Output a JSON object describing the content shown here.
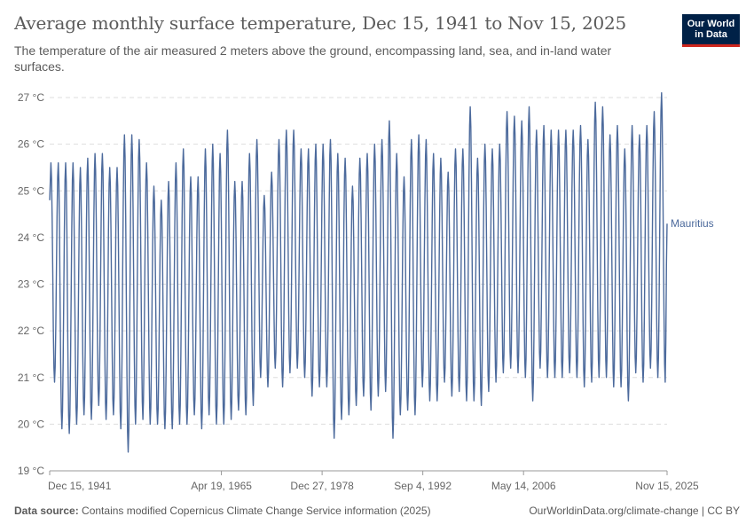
{
  "header": {
    "title": "Average monthly surface temperature, Dec 15, 1941 to Nov 15, 2025",
    "subtitle": "The temperature of the air measured 2 meters above the ground, encompassing land, sea, and in-land water surfaces."
  },
  "logo": {
    "line1": "Our World",
    "line2": "in Data"
  },
  "footer": {
    "source_label": "Data source:",
    "source_text": "Contains modified Copernicus Climate Change Service information (2025)",
    "link_text": "OurWorldinData.org/climate-change | CC BY"
  },
  "chart_data": {
    "type": "line",
    "title": "Average monthly surface temperature, Dec 15, 1941 to Nov 15, 2025",
    "xlabel": "",
    "ylabel": "°C",
    "ylim": [
      19,
      27
    ],
    "y_ticks": [
      "19 °C",
      "20 °C",
      "21 °C",
      "22 °C",
      "23 °C",
      "24 °C",
      "25 °C",
      "26 °C",
      "27 °C"
    ],
    "x_ticks": [
      "Dec 15, 1941",
      "Apr 19, 1965",
      "Dec 27, 1978",
      "Sep 4, 1992",
      "May 14, 2006",
      "Nov 15, 2025"
    ],
    "x_tick_years": [
      1941.96,
      1965.3,
      1978.99,
      1992.68,
      2006.37,
      2025.88
    ],
    "start_year": 1941.96,
    "end_year": 2025.88,
    "series": [
      {
        "name": "Mauritius",
        "color": "#4c6a9c",
        "note": "monthly values; seasonal peak around Feb, trough around Aug",
        "start_value": 24.8,
        "annual_peaks": [
          25.6,
          25.6,
          25.6,
          25.6,
          25.5,
          25.7,
          25.8,
          25.8,
          25.5,
          25.5,
          26.2,
          26.2,
          26.1,
          25.6,
          25.1,
          24.8,
          25.2,
          25.6,
          25.9,
          25.3,
          25.3,
          25.9,
          26.0,
          25.8,
          26.3,
          25.2,
          25.2,
          25.8,
          26.1,
          24.9,
          25.4,
          26.1,
          26.3,
          26.3,
          25.9,
          25.9,
          26.0,
          26.0,
          26.1,
          25.8,
          25.7,
          25.1,
          25.7,
          25.8,
          26.0,
          26.1,
          26.5,
          25.8,
          25.3,
          26.1,
          26.2,
          26.1,
          25.8,
          25.7,
          25.4,
          25.9,
          25.9,
          26.8,
          25.7,
          26.0,
          25.9,
          26.0,
          26.7,
          26.6,
          26.5,
          26.8,
          26.3,
          26.4,
          26.3,
          26.3,
          26.3,
          26.3,
          26.4,
          26.1,
          26.9,
          26.8,
          26.2,
          26.4,
          25.9,
          26.4,
          26.2,
          26.4,
          26.7,
          27.1
        ],
        "annual_troughs": [
          20.9,
          19.9,
          19.8,
          20.0,
          20.2,
          20.1,
          20.4,
          20.1,
          20.2,
          19.9,
          19.4,
          20.0,
          20.1,
          20.0,
          20.0,
          19.9,
          19.9,
          20.0,
          20.0,
          20.2,
          19.9,
          20.2,
          20.0,
          20.0,
          20.1,
          20.3,
          20.2,
          20.4,
          21.0,
          20.8,
          21.2,
          20.8,
          21.1,
          21.2,
          21.0,
          20.6,
          20.8,
          20.8,
          19.7,
          20.1,
          20.2,
          20.4,
          20.6,
          20.3,
          20.6,
          20.7,
          19.7,
          20.2,
          20.3,
          20.2,
          20.8,
          20.5,
          20.5,
          20.9,
          20.6,
          20.7,
          20.5,
          20.5,
          20.4,
          20.7,
          20.9,
          21.1,
          21.2,
          21.1,
          21.0,
          20.5,
          21.2,
          21.0,
          21.0,
          21.0,
          21.1,
          21.0,
          20.8,
          20.9,
          21.0,
          21.0,
          20.8,
          20.8,
          20.5,
          21.1,
          20.9,
          21.2,
          21.0,
          20.9
        ],
        "end_value": 24.3
      }
    ],
    "legend": "end-of-line label"
  }
}
